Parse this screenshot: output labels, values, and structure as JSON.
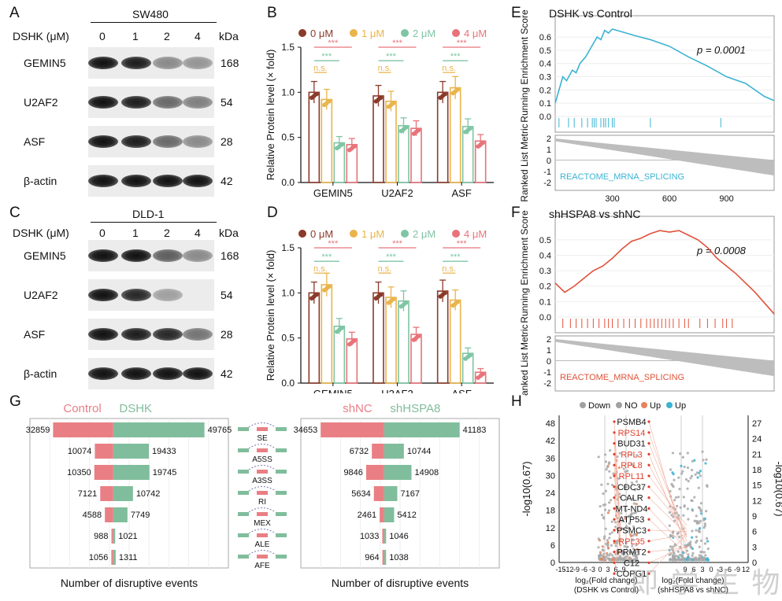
{
  "panels": {
    "A": "A",
    "B": "B",
    "C": "C",
    "D": "D",
    "E": "E",
    "F": "F",
    "G": "G",
    "H": "H"
  },
  "western": {
    "A": {
      "cell_line": "SW480",
      "treatment": "DSHK (μM)",
      "doses": [
        "0",
        "1",
        "2",
        "4"
      ],
      "unit": "kDa",
      "rows": [
        {
          "name": "GEMIN5",
          "kda": "168",
          "intensity": [
            1.0,
            0.95,
            0.45,
            0.4
          ]
        },
        {
          "name": "U2AF2",
          "kda": "54",
          "intensity": [
            1.0,
            0.95,
            0.6,
            0.5
          ]
        },
        {
          "name": "ASF",
          "kda": "28",
          "intensity": [
            1.0,
            0.95,
            0.6,
            0.45
          ]
        },
        {
          "name": "β-actin",
          "kda": "42",
          "intensity": [
            1.0,
            1.0,
            1.0,
            1.0
          ]
        }
      ]
    },
    "C": {
      "cell_line": "DLD-1",
      "treatment": "DSHK (μM)",
      "doses": [
        "0",
        "1",
        "2",
        "4"
      ],
      "unit": "kDa",
      "rows": [
        {
          "name": "GEMIN5",
          "kda": "168",
          "intensity": [
            1.0,
            1.0,
            0.65,
            0.45
          ]
        },
        {
          "name": "U2AF2",
          "kda": "54",
          "intensity": [
            1.0,
            0.9,
            0.35,
            0.0
          ]
        },
        {
          "name": "ASF",
          "kda": "28",
          "intensity": [
            1.0,
            0.95,
            0.9,
            0.55
          ]
        },
        {
          "name": "β-actin",
          "kda": "42",
          "intensity": [
            1.0,
            1.0,
            1.0,
            1.0
          ]
        }
      ]
    }
  },
  "chart_data": [
    {
      "id": "B",
      "type": "bar",
      "ylabel": "Relative Protein level (× fold)",
      "ylim": [
        0,
        1.5
      ],
      "yticks": [
        "0.0",
        "0.5",
        "1.0",
        "1.5"
      ],
      "categories": [
        "GEMIN5",
        "U2AF2",
        "ASF"
      ],
      "series": [
        {
          "name": "0 μM",
          "color": "#8b3a2a",
          "values": [
            1.0,
            0.96,
            1.0
          ]
        },
        {
          "name": "1 μM",
          "color": "#e9b44c",
          "values": [
            0.92,
            0.9,
            1.05
          ]
        },
        {
          "name": "2 μM",
          "color": "#7fc5a4",
          "values": [
            0.44,
            0.63,
            0.62
          ]
        },
        {
          "name": "4 μM",
          "color": "#e8737a",
          "values": [
            0.42,
            0.6,
            0.46
          ]
        }
      ],
      "sig": [
        "n.s.",
        "***",
        "***"
      ]
    },
    {
      "id": "D",
      "type": "bar",
      "ylabel": "Relative Protein level (× fold)",
      "ylim": [
        0,
        1.5
      ],
      "yticks": [
        "0.0",
        "0.5",
        "1.0",
        "1.5"
      ],
      "categories": [
        "GEMIN5",
        "U2AF2",
        "ASF"
      ],
      "series": [
        {
          "name": "0 μM",
          "color": "#8b3a2a",
          "values": [
            1.0,
            1.0,
            1.02
          ]
        },
        {
          "name": "1 μM",
          "color": "#e9b44c",
          "values": [
            1.09,
            0.95,
            0.92
          ]
        },
        {
          "name": "2 μM",
          "color": "#7fc5a4",
          "values": [
            0.63,
            0.91,
            0.33
          ]
        },
        {
          "name": "4 μM",
          "color": "#e8737a",
          "values": [
            0.49,
            0.54,
            0.12
          ]
        }
      ],
      "sig": [
        "n.s.",
        "***",
        "***"
      ]
    },
    {
      "id": "E",
      "type": "line",
      "title": "DSHK vs Control",
      "pvalue": "p = 0.0001",
      "ylabel": "Running Enrichment Score",
      "ylabel2": "Ranked List Metric",
      "xlabel": "Rank in Ordered Dataset",
      "geneset": "REACTOME_MRNA_SPLICING",
      "color": "#3bb3d3",
      "yticks": [
        "0.0",
        "0.1",
        "0.2",
        "0.3",
        "0.4",
        "0.5",
        "0.6"
      ],
      "xticks": [
        "300",
        "600",
        "900"
      ],
      "metric_ticks": [
        "2",
        "1",
        "0",
        "-1",
        "-2"
      ],
      "x": [
        0,
        20,
        40,
        60,
        90,
        110,
        130,
        160,
        180,
        200,
        220,
        240,
        260,
        280,
        300,
        350,
        420,
        500,
        600,
        700,
        800,
        900,
        1000,
        1100,
        1150
      ],
      "y": [
        0.1,
        0.2,
        0.3,
        0.27,
        0.35,
        0.33,
        0.4,
        0.45,
        0.5,
        0.55,
        0.6,
        0.58,
        0.65,
        0.63,
        0.66,
        0.64,
        0.61,
        0.58,
        0.53,
        0.45,
        0.38,
        0.3,
        0.25,
        0.15,
        0.12
      ],
      "hits": [
        20,
        70,
        100,
        140,
        170,
        195,
        205,
        215,
        240,
        255,
        265,
        280,
        300,
        310,
        500,
        870
      ]
    },
    {
      "id": "F",
      "type": "line",
      "title": "shHSPA8 vs shNC",
      "pvalue": "p = 0.0008",
      "ylabel": "Running Enrichment Score",
      "ylabel2": "Ranked List Metric",
      "xlabel": "Rank in Ordered Dataset",
      "geneset": "REACTOME_MRNA_SPLICING",
      "color": "#e0523a",
      "yticks": [
        "0.0",
        "0.1",
        "0.2",
        "0.3",
        "0.4",
        "0.5"
      ],
      "xticks": [
        "300",
        "600",
        "900"
      ],
      "metric_ticks": [
        "2",
        "1",
        "0",
        "-1",
        "-2"
      ],
      "x": [
        0,
        50,
        100,
        150,
        200,
        250,
        300,
        350,
        400,
        450,
        500,
        550,
        600,
        650,
        700,
        750,
        800,
        850,
        900,
        950,
        1000,
        1050,
        1100,
        1150
      ],
      "y": [
        0.22,
        0.16,
        0.2,
        0.25,
        0.3,
        0.33,
        0.38,
        0.44,
        0.49,
        0.51,
        0.54,
        0.56,
        0.55,
        0.56,
        0.53,
        0.5,
        0.45,
        0.38,
        0.33,
        0.28,
        0.22,
        0.16,
        0.09,
        0.02
      ],
      "hits": [
        40,
        80,
        110,
        140,
        170,
        200,
        230,
        260,
        280,
        300,
        330,
        360,
        390,
        420,
        450,
        480,
        500,
        520,
        540,
        560,
        580,
        600,
        620,
        650,
        680,
        700,
        760,
        800,
        840,
        880,
        900,
        930
      ]
    },
    {
      "id": "G-left",
      "type": "bar",
      "group1": "Control",
      "group2": "DSHK",
      "color1": "#e97f84",
      "color2": "#80bd9c",
      "xlabel": "Number of disruptive events",
      "categories": [
        "SE",
        "A5SS",
        "A3SS",
        "RI",
        "MEX",
        "ALE",
        "AFE"
      ],
      "left": [
        32859,
        10074,
        10350,
        7121,
        4588,
        988,
        1056
      ],
      "right": [
        49765,
        19433,
        19745,
        10742,
        7749,
        1021,
        1311
      ]
    },
    {
      "id": "G-right",
      "type": "bar",
      "group1": "shNC",
      "group2": "shHSPA8",
      "color1": "#e97f84",
      "color2": "#80bd9c",
      "xlabel": "Number of disruptive events",
      "categories": [
        "SE",
        "A5SS",
        "A3SS",
        "RI",
        "MEX",
        "ALE",
        "AFE"
      ],
      "left": [
        34653,
        6732,
        9846,
        5634,
        2461,
        1033,
        964
      ],
      "right": [
        41183,
        10744,
        14908,
        7167,
        5412,
        1046,
        1038
      ]
    },
    {
      "id": "H",
      "type": "scatter",
      "legend": [
        {
          "label": "Down",
          "color": "#a0a0a0"
        },
        {
          "label": "NO",
          "color": "#a0a0a0"
        },
        {
          "label": "Up",
          "color": "#e8825c"
        },
        {
          "label": "Up",
          "color": "#3bb3d3"
        }
      ],
      "ylabel": "-log10(0.67)",
      "ylabel_right": "-log10(0.67)",
      "yticks_left": [
        "0",
        "6",
        "12",
        "18",
        "24",
        "30",
        "36",
        "42",
        "48"
      ],
      "yticks_right": [
        "0",
        "3",
        "6",
        "9",
        "12",
        "15",
        "18",
        "21",
        "24",
        "27"
      ],
      "xticks_left": [
        "-15",
        "-12",
        "-9",
        "-6",
        "-3",
        "0",
        "3",
        "6",
        "9"
      ],
      "xticks_right": [
        "9",
        "6",
        "3",
        "0",
        "-3",
        "-6",
        "-9",
        "12"
      ],
      "xlabel_left": [
        "log₂(Fold change)",
        "(DSHK vs Control)"
      ],
      "xlabel_right": [
        "log₂(Fold change)",
        "(shHSPA8 vs shNC)"
      ],
      "genes": [
        {
          "name": "PSMB4",
          "color": "#111"
        },
        {
          "name": "RPS14",
          "color": "#e0402e"
        },
        {
          "name": "BUD31",
          "color": "#111"
        },
        {
          "name": "RPL3",
          "color": "#e0402e"
        },
        {
          "name": "RPL8",
          "color": "#e0402e"
        },
        {
          "name": "RPL11",
          "color": "#e0402e"
        },
        {
          "name": "CDC37",
          "color": "#111"
        },
        {
          "name": "CALR",
          "color": "#111"
        },
        {
          "name": "MT-ND4",
          "color": "#111"
        },
        {
          "name": "ATP53",
          "color": "#111"
        },
        {
          "name": "PSMC3",
          "color": "#111"
        },
        {
          "name": "RPL35",
          "color": "#e0402e"
        },
        {
          "name": "PRMT2",
          "color": "#111"
        },
        {
          "name": "C12",
          "color": "#111"
        },
        {
          "name": "COPG1",
          "color": "#111"
        }
      ]
    }
  ],
  "watermark": "即 学 生 物"
}
